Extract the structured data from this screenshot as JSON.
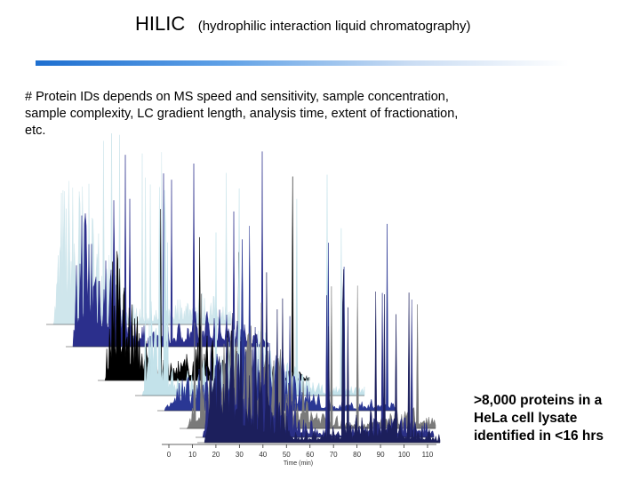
{
  "title": {
    "main": "HILIC",
    "sub": "(hydrophilic interaction liquid chromatography)"
  },
  "note": "# Protein IDs depends on MS speed and sensitivity, sample concentration, sample complexity, LC gradient length, analysis time, extent of fractionation, etc.",
  "callout": ">8,000 proteins in a HeLa cell lysate identified in <16 hrs",
  "chart_data": {
    "type": "area",
    "xlabel": "Time (min)",
    "x_ticks": [
      "0",
      "10",
      "20",
      "30",
      "40",
      "50",
      "60",
      "70",
      "80",
      "90",
      "100",
      "110"
    ],
    "xlim": [
      0,
      115
    ],
    "stacked_offset": true,
    "traces": [
      {
        "color": "#cfe6ec"
      },
      {
        "color": "#2b2f8c"
      },
      {
        "color": "#000000"
      },
      {
        "color": "#c3e2ea"
      },
      {
        "color": "#2a3794"
      },
      {
        "color": "#7a7a7a"
      },
      {
        "color": "#2a2f86"
      },
      {
        "color": "#1c1f5c"
      }
    ]
  }
}
